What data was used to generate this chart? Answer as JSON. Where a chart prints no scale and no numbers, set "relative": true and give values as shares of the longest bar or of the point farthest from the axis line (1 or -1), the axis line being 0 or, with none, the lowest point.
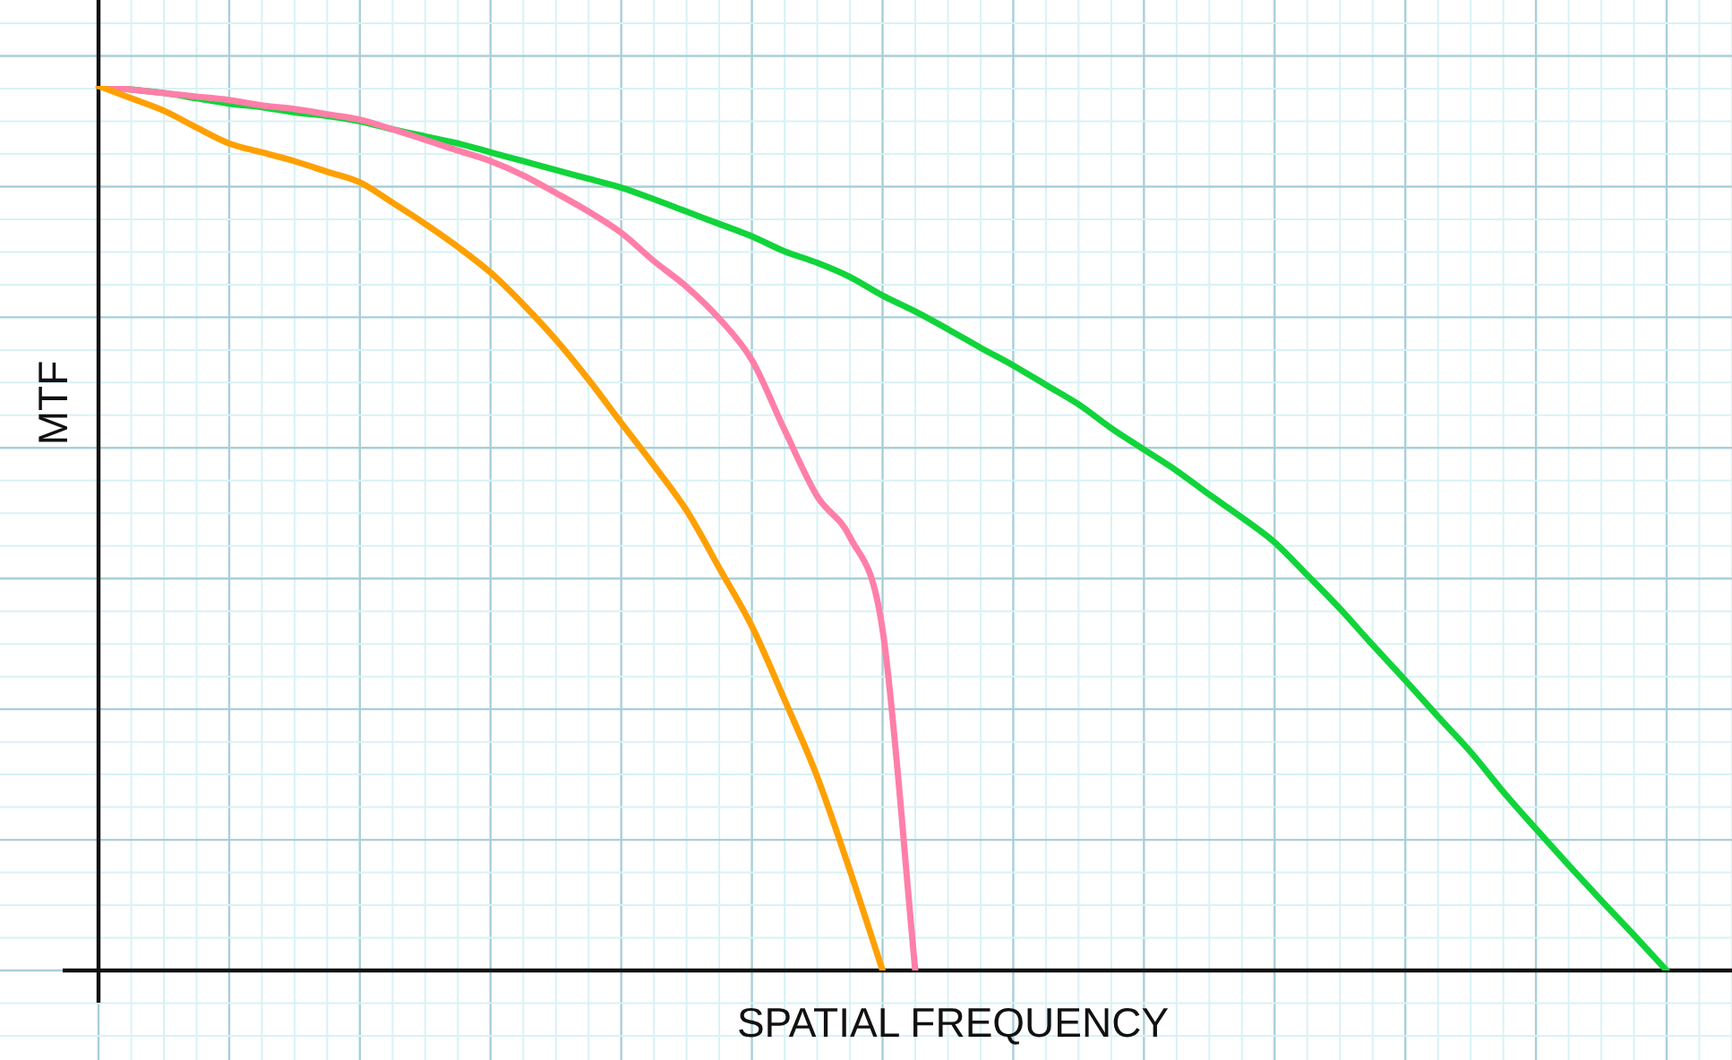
{
  "chart_data": {
    "type": "line",
    "relative": true,
    "xlabel": "SPATIAL FREQUENCY",
    "ylabel": "MTF",
    "grid": true,
    "marker": "none",
    "line_style": "solid",
    "categories": [
      null,
      null,
      null,
      null,
      null,
      null,
      null,
      null,
      null,
      null,
      null,
      null,
      null,
      null,
      null,
      null,
      null,
      null,
      null,
      null,
      null,
      null,
      null,
      null,
      null,
      null,
      null,
      null,
      null,
      null,
      null,
      null,
      null,
      null,
      null,
      null,
      null,
      null,
      null,
      null,
      null,
      null,
      null,
      null,
      null,
      null,
      null,
      null,
      null,
      null,
      null
    ],
    "series": [
      {
        "color": "#ffa000",
        "values": [
          1,
          0.986,
          0.972,
          0.953,
          0.935,
          0.925,
          0.915,
          0.903,
          0.891,
          0.868,
          0.844,
          0.818,
          0.789,
          0.753,
          0.713,
          0.668,
          0.619,
          0.571,
          0.52,
          0.455,
          0.389,
          0.306,
          0.219,
          0.113,
          0,
          null,
          null,
          null,
          null,
          null,
          null,
          null,
          null,
          null,
          null,
          null,
          null,
          null,
          null,
          null,
          null,
          null,
          null,
          null,
          null,
          null,
          null,
          null,
          null,
          null,
          null
        ]
      },
      {
        "color": "#ff7fa8",
        "values": [
          1,
          0.996,
          0.992,
          0.988,
          0.984,
          0.978,
          0.974,
          0.968,
          0.962,
          0.951,
          0.939,
          0.927,
          0.915,
          0.899,
          0.879,
          0.858,
          0.834,
          0.802,
          0.773,
          0.737,
          0.69,
          0.611,
          0.536,
          0.49,
          0.385,
          0,
          null,
          null,
          null,
          null,
          null,
          null,
          null,
          null,
          null,
          null,
          null,
          null,
          null,
          null,
          null,
          null,
          null,
          null,
          null,
          null,
          null,
          null,
          null,
          null,
          null
        ]
      },
      {
        "color": "#11d43a",
        "values": [
          1,
          0.996,
          0.992,
          0.986,
          0.98,
          0.976,
          0.97,
          0.966,
          0.96,
          0.951,
          0.943,
          0.935,
          0.925,
          0.915,
          0.905,
          0.895,
          0.885,
          0.872,
          0.858,
          0.844,
          0.83,
          0.813,
          0.8,
          0.784,
          0.763,
          0.745,
          0.725,
          0.704,
          0.684,
          0.662,
          0.64,
          0.613,
          0.589,
          0.565,
          0.538,
          0.512,
          0.484,
          0.447,
          0.409,
          0.368,
          0.328,
          0.287,
          0.247,
          0.202,
          0.16,
          0.119,
          0.079,
          0.04,
          0,
          null,
          null
        ]
      }
    ]
  }
}
